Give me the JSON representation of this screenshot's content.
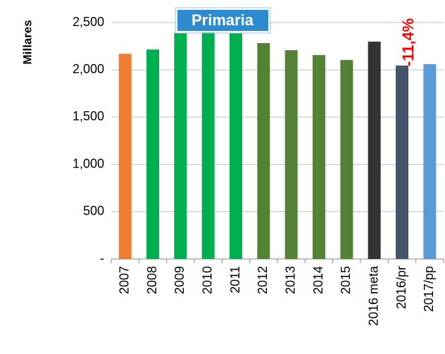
{
  "chart_data": {
    "type": "bar",
    "y_label": "Millares",
    "categories": [
      "2007",
      "2008",
      "2009",
      "2010",
      "2011",
      "2012",
      "2013",
      "2014",
      "2015",
      "2016 meta",
      "2016/pr",
      "2017/pp"
    ],
    "values": [
      2170,
      2215,
      2390,
      2395,
      2390,
      2283,
      2208,
      2156,
      2104,
      2298,
      2045,
      2060
    ],
    "colors": [
      "#ED7D31",
      "#00B050",
      "#00B050",
      "#00B050",
      "#00B050",
      "#548235",
      "#548235",
      "#548235",
      "#548235",
      "#333333",
      "#44546A",
      "#5B9BD5"
    ],
    "ylim": [
      0,
      2500
    ],
    "yticks": [
      {
        "value": 0,
        "label": "-"
      },
      {
        "value": 500,
        "label": "500"
      },
      {
        "value": 1000,
        "label": "1,000"
      },
      {
        "value": 1500,
        "label": "1,500"
      },
      {
        "value": 2000,
        "label": "2,000"
      },
      {
        "value": 2500,
        "label": "2,500"
      }
    ],
    "grid": true,
    "annotations": [
      "Primaria",
      "-11,4%"
    ]
  }
}
